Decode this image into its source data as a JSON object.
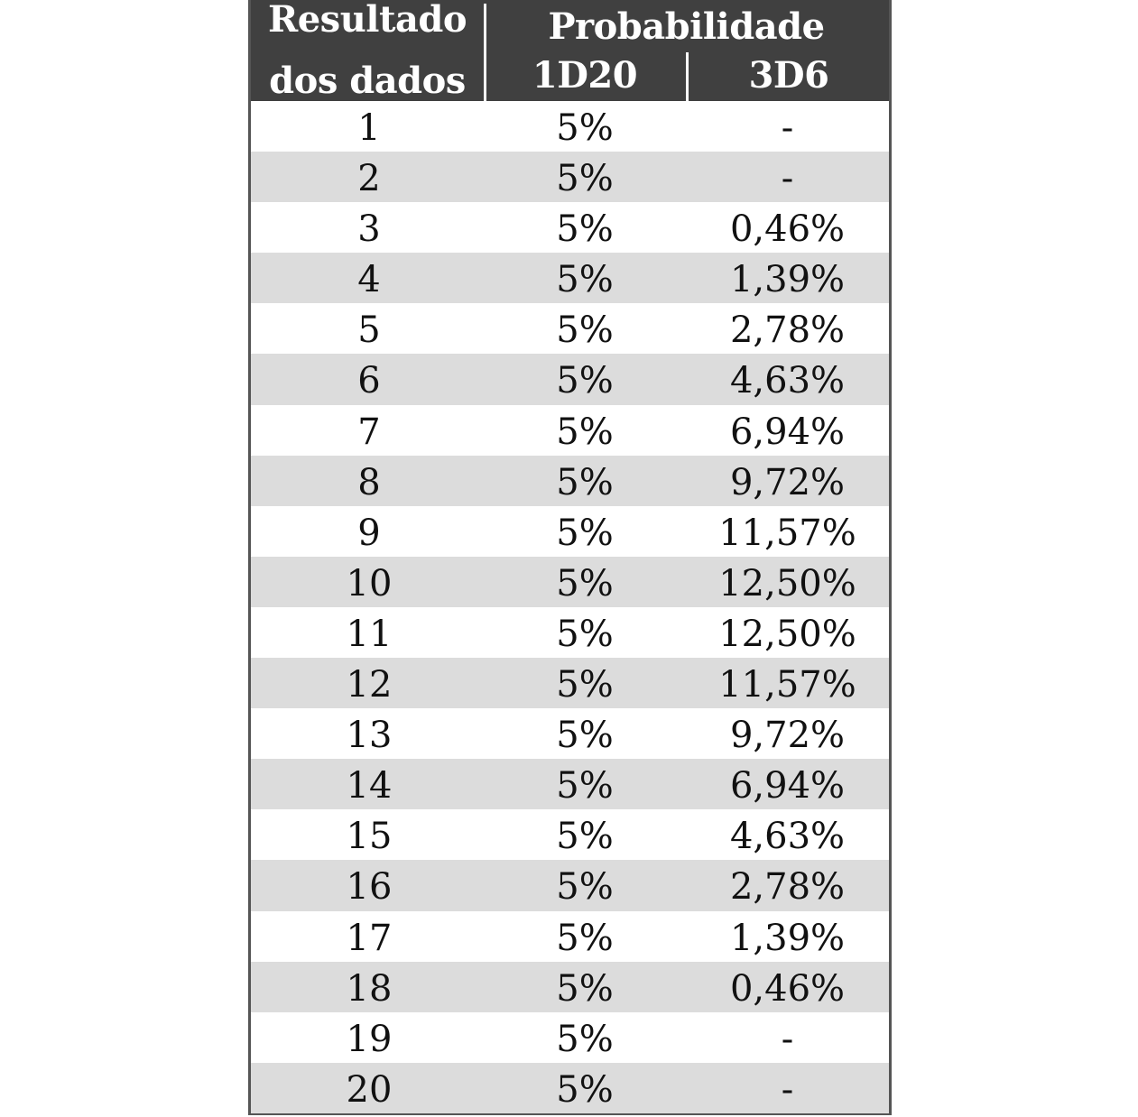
{
  "chart_data": {
    "type": "table",
    "header": {
      "result_line1": "Resultado",
      "result_line2": "dos dados",
      "group": "Probabilidade",
      "col_1d20": "1D20",
      "col_3d6": "3D6"
    },
    "rows": [
      {
        "result": "1",
        "d20": "5%",
        "d6x3": "-"
      },
      {
        "result": "2",
        "d20": "5%",
        "d6x3": "-"
      },
      {
        "result": "3",
        "d20": "5%",
        "d6x3": "0,46%"
      },
      {
        "result": "4",
        "d20": "5%",
        "d6x3": "1,39%"
      },
      {
        "result": "5",
        "d20": "5%",
        "d6x3": "2,78%"
      },
      {
        "result": "6",
        "d20": "5%",
        "d6x3": "4,63%"
      },
      {
        "result": "7",
        "d20": "5%",
        "d6x3": "6,94%"
      },
      {
        "result": "8",
        "d20": "5%",
        "d6x3": "9,72%"
      },
      {
        "result": "9",
        "d20": "5%",
        "d6x3": "11,57%"
      },
      {
        "result": "10",
        "d20": "5%",
        "d6x3": "12,50%"
      },
      {
        "result": "11",
        "d20": "5%",
        "d6x3": "12,50%"
      },
      {
        "result": "12",
        "d20": "5%",
        "d6x3": "11,57%"
      },
      {
        "result": "13",
        "d20": "5%",
        "d6x3": "9,72%"
      },
      {
        "result": "14",
        "d20": "5%",
        "d6x3": "6,94%"
      },
      {
        "result": "15",
        "d20": "5%",
        "d6x3": "4,63%"
      },
      {
        "result": "16",
        "d20": "5%",
        "d6x3": "2,78%"
      },
      {
        "result": "17",
        "d20": "5%",
        "d6x3": "1,39%"
      },
      {
        "result": "18",
        "d20": "5%",
        "d6x3": "0,46%"
      },
      {
        "result": "19",
        "d20": "5%",
        "d6x3": "-"
      },
      {
        "result": "20",
        "d20": "5%",
        "d6x3": "-"
      }
    ],
    "colors": {
      "header_bg": "#404040",
      "header_text": "#ffffff",
      "row_alt_bg": "#dcdcdc",
      "row_bg": "#ffffff",
      "border": "#555555"
    }
  }
}
